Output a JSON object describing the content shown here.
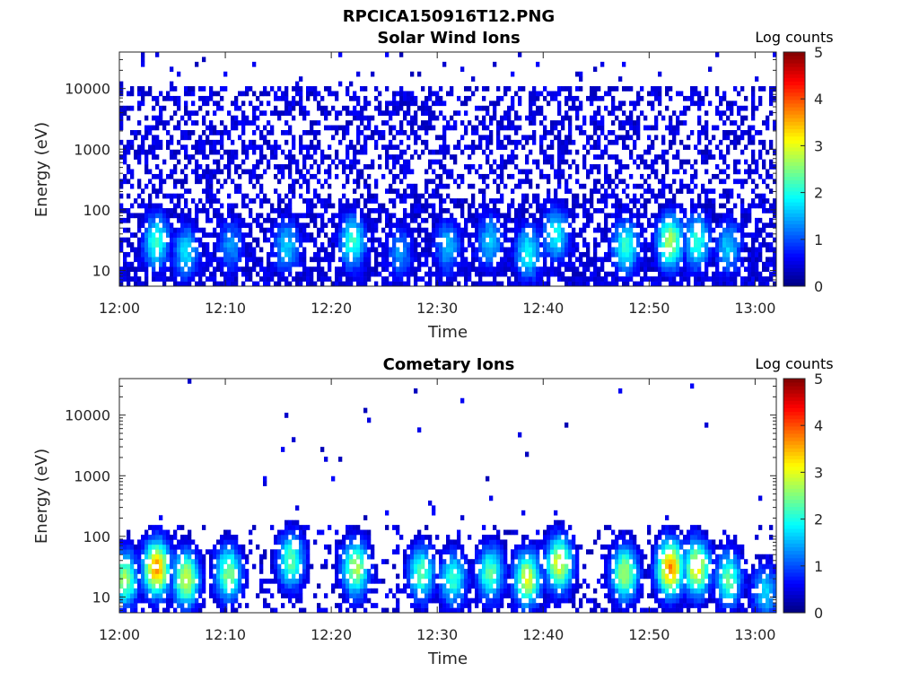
{
  "figure_title": "RPCICA150916T12.PNG",
  "chart_data": [
    {
      "type": "heatmap",
      "title": "Solar Wind Ions",
      "xlabel": "Time",
      "ylabel": "Energy (eV)",
      "yscale": "log",
      "ylim": [
        5.5,
        40000
      ],
      "xlim": [
        "12:00",
        "13:02"
      ],
      "xticks": [
        "12:00",
        "12:10",
        "12:20",
        "12:30",
        "12:40",
        "12:50",
        "13:00"
      ],
      "yticks": [
        10,
        100,
        1000,
        10000
      ],
      "ytick_labels": [
        "10",
        "100",
        "1000",
        "10000"
      ],
      "colorbar": {
        "label": "Log counts",
        "range": [
          0,
          5
        ],
        "ticks": [
          "0",
          "1",
          "2",
          "3",
          "4",
          "5"
        ],
        "colormap": "jet"
      },
      "bursts": [
        {
          "t": 3.5,
          "e": 30,
          "c": 2.0
        },
        {
          "t": 6.3,
          "e": 20,
          "c": 1.6
        },
        {
          "t": 10.5,
          "e": 25,
          "c": 1.2
        },
        {
          "t": 15.8,
          "e": 25,
          "c": 1.5
        },
        {
          "t": 22.0,
          "e": 30,
          "c": 2.0
        },
        {
          "t": 26.5,
          "e": 20,
          "c": 1.2
        },
        {
          "t": 31.0,
          "e": 25,
          "c": 1.4
        },
        {
          "t": 35.0,
          "e": 30,
          "c": 1.5
        },
        {
          "t": 38.6,
          "e": 20,
          "c": 1.8
        },
        {
          "t": 41.2,
          "e": 40,
          "c": 1.8
        },
        {
          "t": 47.8,
          "e": 25,
          "c": 2.0
        },
        {
          "t": 52.0,
          "e": 30,
          "c": 2.6
        },
        {
          "t": 54.5,
          "e": 30,
          "c": 2.0
        },
        {
          "t": 57.5,
          "e": 25,
          "c": 1.5
        }
      ]
    },
    {
      "type": "heatmap",
      "title": "Cometary Ions",
      "xlabel": "Time",
      "ylabel": "Energy (eV)",
      "yscale": "log",
      "ylim": [
        5.5,
        40000
      ],
      "xlim": [
        "12:00",
        "13:02"
      ],
      "xticks": [
        "12:00",
        "12:10",
        "12:20",
        "12:30",
        "12:40",
        "12:50",
        "13:00"
      ],
      "yticks": [
        10,
        100,
        1000,
        10000
      ],
      "ytick_labels": [
        "10",
        "100",
        "1000",
        "10000"
      ],
      "colorbar": {
        "label": "Log counts",
        "range": [
          0,
          5
        ],
        "ticks": [
          "0",
          "1",
          "2",
          "3",
          "4",
          "5"
        ],
        "colormap": "jet"
      },
      "bursts": [
        {
          "t": 0.5,
          "e": 20,
          "c": 2.5
        },
        {
          "t": 3.5,
          "e": 30,
          "c": 3.5
        },
        {
          "t": 6.3,
          "e": 20,
          "c": 2.8
        },
        {
          "t": 10.3,
          "e": 25,
          "c": 2.4
        },
        {
          "t": 16.2,
          "e": 40,
          "c": 2.2
        },
        {
          "t": 22.3,
          "e": 30,
          "c": 2.6
        },
        {
          "t": 28.5,
          "e": 25,
          "c": 2.2
        },
        {
          "t": 31.5,
          "e": 20,
          "c": 2.0
        },
        {
          "t": 35.0,
          "e": 25,
          "c": 2.2
        },
        {
          "t": 38.5,
          "e": 20,
          "c": 2.8
        },
        {
          "t": 41.5,
          "e": 35,
          "c": 2.9
        },
        {
          "t": 47.7,
          "e": 25,
          "c": 2.6
        },
        {
          "t": 52.0,
          "e": 30,
          "c": 3.6
        },
        {
          "t": 54.5,
          "e": 30,
          "c": 3.0
        },
        {
          "t": 57.5,
          "e": 20,
          "c": 2.2
        },
        {
          "t": 61.0,
          "e": 12,
          "c": 1.6
        }
      ]
    }
  ]
}
